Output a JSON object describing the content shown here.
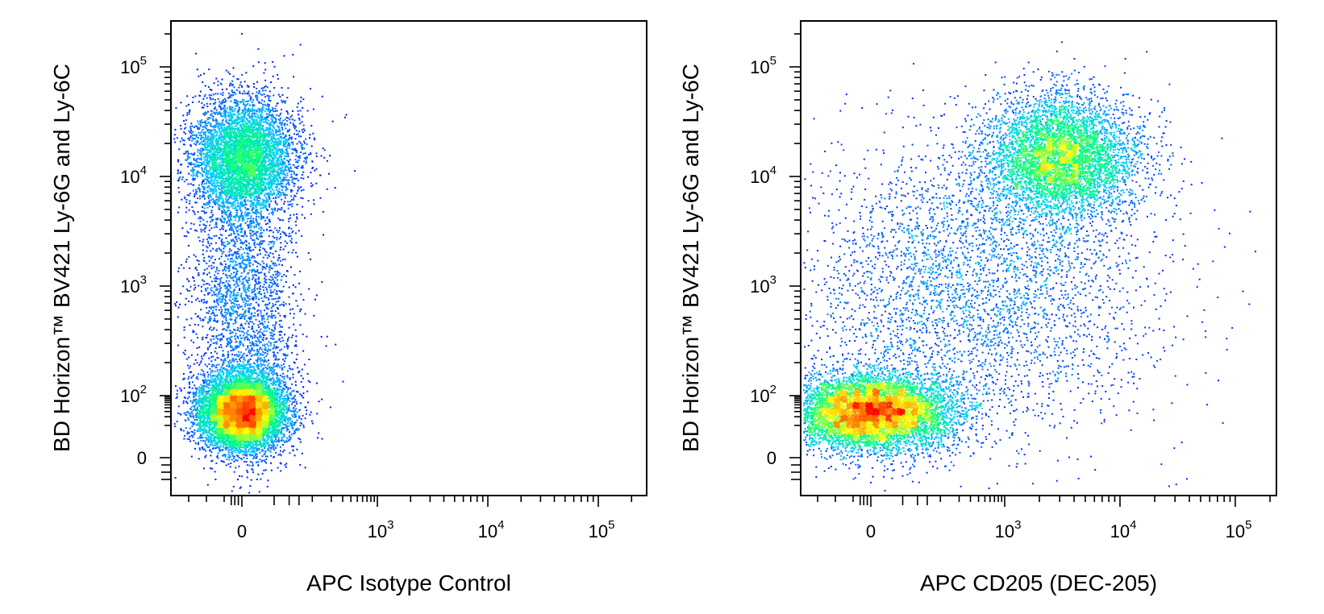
{
  "chart_data": [
    {
      "type": "scatter",
      "subtype": "flow-cytometry-density-dot-plot",
      "xlabel": "APC Isotype Control",
      "ylabel": "BD Horizon™ BV421 Ly-6G and Ly-6C",
      "x_scale": "biexponential",
      "y_scale": "biexponential",
      "x_ticks": [
        {
          "value": 0,
          "base": "0",
          "exp": ""
        },
        {
          "value": 1000,
          "base": "10",
          "exp": "3"
        },
        {
          "value": 10000,
          "base": "10",
          "exp": "4"
        },
        {
          "value": 100000,
          "base": "10",
          "exp": "5"
        }
      ],
      "y_ticks": [
        {
          "value": 0,
          "base": "0",
          "exp": ""
        },
        {
          "value": 100,
          "base": "10",
          "exp": "2"
        },
        {
          "value": 1000,
          "base": "10",
          "exp": "3"
        },
        {
          "value": 10000,
          "base": "10",
          "exp": "4"
        },
        {
          "value": 100000,
          "base": "10",
          "exp": "5"
        }
      ],
      "xlim": [
        -400,
        250000
      ],
      "ylim": [
        -40,
        250000
      ],
      "colormap": [
        "#0000ff",
        "#00c8ff",
        "#00ff80",
        "#ffff00",
        "#ff8000",
        "#ff0000"
      ],
      "populations": [
        {
          "x": 0,
          "y": 30,
          "weight": 0.52
        },
        {
          "x": 0,
          "y": 15000,
          "weight": 0.33
        },
        {
          "x": 0,
          "y": 700,
          "weight": 0.15
        }
      ]
    },
    {
      "type": "scatter",
      "subtype": "flow-cytometry-density-dot-plot",
      "xlabel": "APC CD205 (DEC-205)",
      "ylabel": "BD Horizon™ BV421 Ly-6G and Ly-6C",
      "x_scale": "biexponential",
      "y_scale": "biexponential",
      "x_ticks": [
        {
          "value": 0,
          "base": "0",
          "exp": ""
        },
        {
          "value": 1000,
          "base": "10",
          "exp": "3"
        },
        {
          "value": 10000,
          "base": "10",
          "exp": "4"
        },
        {
          "value": 100000,
          "base": "10",
          "exp": "5"
        }
      ],
      "y_ticks": [
        {
          "value": 0,
          "base": "0",
          "exp": ""
        },
        {
          "value": 100,
          "base": "10",
          "exp": "2"
        },
        {
          "value": 1000,
          "base": "10",
          "exp": "3"
        },
        {
          "value": 10000,
          "base": "10",
          "exp": "4"
        },
        {
          "value": 100000,
          "base": "10",
          "exp": "5"
        }
      ],
      "xlim": [
        -400,
        250000
      ],
      "ylim": [
        -40,
        250000
      ],
      "colormap": [
        "#0000ff",
        "#00c8ff",
        "#00ff80",
        "#ffff00",
        "#ff8000",
        "#ff0000"
      ],
      "populations": [
        {
          "x": 0,
          "y": 30,
          "weight": 0.45
        },
        {
          "x": 3000,
          "y": 15000,
          "weight": 0.32
        },
        {
          "x": 300,
          "y": 1000,
          "weight": 0.23
        }
      ]
    }
  ]
}
